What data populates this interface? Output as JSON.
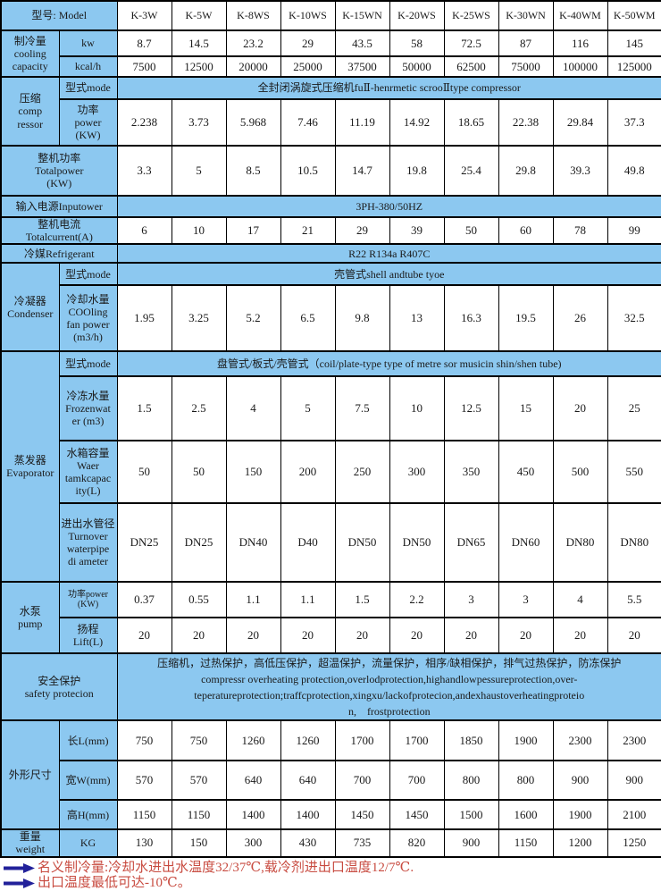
{
  "colors": {
    "label_blue": "#8CC8F0",
    "note_red": "#C84B40",
    "arrow_navy": "#22219A",
    "border_black": "#000000",
    "text": "#1A1A1A"
  },
  "icons": {
    "note_bullet": "right-arrow"
  },
  "models": [
    "K-3W",
    "K-5W",
    "K-8WS",
    "K-10WS",
    "K-15WN",
    "K-20WS",
    "K-25WS",
    "K-30WN",
    "K-40WM",
    "K-50WM"
  ],
  "labels": {
    "model": "型号: Model",
    "cooling": "制冷量\ncooling\ncapacity",
    "kw": "kw",
    "kcal": "kcal/h",
    "compressor": "压缩\ncomp\nressor",
    "mode": "型式mode",
    "comp_power": "功率\npower\n(KW)",
    "total_power": "整机功率\nTotalpower\n(KW)",
    "input_power": "输入电源Inputower",
    "total_current": "整机电流\nTotalcurrent(A)",
    "refrigerant": "冷媒Refrigerant",
    "condenser": "冷凝器\nCondenser",
    "cond_water": "冷却水量\nCOOling\nfan power\n(m3/h)",
    "evaporator": "蒸发器\nEvaporator",
    "frozen_water": "冷冻水量\nFrozenwat\ner (m3)",
    "tank": "水箱容量\nWaer\ntamkcapac\nity(L)",
    "pipe": "进出水管径\nTurnover\nwaterpipe\ndi ameter",
    "pump": "水泵\npump",
    "pump_power": "功率power\n(KW)",
    "lift": "扬程\nLift(L)",
    "safety": "安全保护\nsafety protecion",
    "dimensions": "外形尺寸",
    "length": "长L(mm)",
    "width": "宽W(mm)",
    "height": "高H(mm)",
    "weight": "重量\nweight",
    "kg": "KG"
  },
  "merged": {
    "comp_mode": "全封闭涡旋式压缩机fuⅡ-henrmetic scrooⅡtype compressor",
    "input_power": "3PH-380/50HZ",
    "refrigerant": "R22 R134a R407C",
    "cond_mode": "壳管式shell andtube tyoe",
    "evap_mode": "盘管式/板式/壳管式（coil/plate-type type of metre sor musicin shin/shen tube)",
    "safety": "压缩机，过热保护，高低压保护，超温保护，流量保护，相序/缺相保护，排气过热保护，防冻保护\ncompressr overheating protection,overlodprotection,highandlowpessureprotection,over-\nteperatureprotection;traffcprotection,xingxu/lackofprotecion,andexhaustoverheatingproteio\nn,    frostprotection"
  },
  "values": {
    "cooling_kw": [
      "8.7",
      "14.5",
      "23.2",
      "29",
      "43.5",
      "58",
      "72.5",
      "87",
      "116",
      "145"
    ],
    "cooling_kcal": [
      "7500",
      "12500",
      "20000",
      "25000",
      "37500",
      "50000",
      "62500",
      "75000",
      "100000",
      "125000"
    ],
    "comp_power": [
      "2.238",
      "3.73",
      "5.968",
      "7.46",
      "11.19",
      "14.92",
      "18.65",
      "22.38",
      "29.84",
      "37.3"
    ],
    "total_power": [
      "3.3",
      "5",
      "8.5",
      "10.5",
      "14.7",
      "19.8",
      "25.4",
      "29.8",
      "39.3",
      "49.8"
    ],
    "total_current": [
      "6",
      "10",
      "17",
      "21",
      "29",
      "39",
      "50",
      "60",
      "78",
      "99"
    ],
    "cond_water": [
      "1.95",
      "3.25",
      "5.2",
      "6.5",
      "9.8",
      "13",
      "16.3",
      "19.5",
      "26",
      "32.5"
    ],
    "frozen_water": [
      "1.5",
      "2.5",
      "4",
      "5",
      "7.5",
      "10",
      "12.5",
      "15",
      "20",
      "25"
    ],
    "tank_capacity": [
      "50",
      "50",
      "150",
      "200",
      "250",
      "300",
      "350",
      "450",
      "500",
      "550"
    ],
    "pipe_diameter": [
      "DN25",
      "DN25",
      "DN40",
      "D40",
      "DN50",
      "DN50",
      "DN65",
      "DN60",
      "DN80",
      "DN80"
    ],
    "pump_power": [
      "0.37",
      "0.55",
      "1.1",
      "1.1",
      "1.5",
      "2.2",
      "3",
      "3",
      "4",
      "5.5"
    ],
    "lift": [
      "20",
      "20",
      "20",
      "20",
      "20",
      "20",
      "20",
      "20",
      "20",
      "20"
    ],
    "length": [
      "750",
      "750",
      "1260",
      "1260",
      "1700",
      "1700",
      "1850",
      "1900",
      "2300",
      "2300"
    ],
    "width": [
      "570",
      "570",
      "640",
      "640",
      "700",
      "700",
      "800",
      "800",
      "900",
      "900"
    ],
    "height": [
      "1150",
      "1150",
      "1400",
      "1400",
      "1450",
      "1450",
      "1500",
      "1600",
      "1900",
      "2100"
    ],
    "weight": [
      "130",
      "150",
      "300",
      "430",
      "735",
      "820",
      "900",
      "1150",
      "1200",
      "1250"
    ]
  },
  "notes": [
    "名义制冷量:冷却水进出水温度32/37℃,载冷剂进出口温度12/7℃.",
    "出口温度最低可达-10℃。"
  ]
}
